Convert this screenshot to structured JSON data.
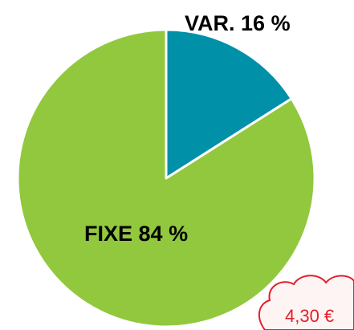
{
  "chart_data": {
    "type": "pie",
    "categories": [
      "VAR.",
      "FIXE"
    ],
    "values": [
      16,
      84
    ],
    "value_labels": [
      "16 %",
      "84 %"
    ],
    "colors": [
      "#0090a8",
      "#92c83e"
    ]
  },
  "callout": {
    "text": "4,30 €"
  }
}
